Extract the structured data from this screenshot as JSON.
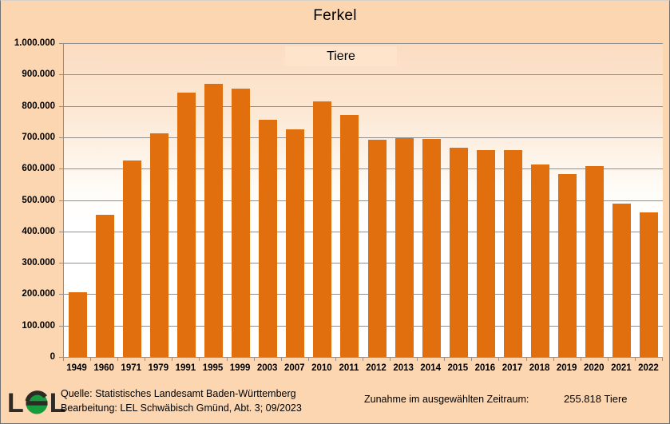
{
  "window": {
    "background_color": "#fbd6b1",
    "border_color": "#707070"
  },
  "header": {
    "title": "Ferkel"
  },
  "chart_data": {
    "type": "bar",
    "title": "Ferkel",
    "series_label": "Tiere",
    "categories": [
      "1949",
      "1960",
      "1971",
      "1979",
      "1991",
      "1995",
      "1999",
      "2003",
      "2007",
      "2010",
      "2011",
      "2012",
      "2013",
      "2014",
      "2015",
      "2016",
      "2017",
      "2018",
      "2019",
      "2020",
      "2021",
      "2022"
    ],
    "values": [
      205182,
      454000,
      626000,
      712000,
      842000,
      871000,
      856000,
      756000,
      725000,
      815000,
      770000,
      691000,
      697000,
      694000,
      667000,
      658000,
      659000,
      614000,
      582000,
      607000,
      489000,
      461000
    ],
    "unit": "Tiere",
    "ylim": [
      0,
      1000000
    ],
    "ytick_step": 100000,
    "ytick_labels": [
      "1.000.000",
      "900.000",
      "800.000",
      "700.000",
      "600.000",
      "500.000",
      "400.000",
      "300.000",
      "200.000",
      "100.000",
      "0"
    ],
    "grid": "horizontal",
    "legend_position": "top-center-inside",
    "bar_color": "#e26f0d",
    "gridline_color": "#8f8f8f"
  },
  "footer": {
    "logo": {
      "letter_left": "L",
      "letter_right": "L",
      "circle_color": "#169c3e"
    },
    "source_line1": "Quelle: Statistisches Landesamt Baden-Württemberg",
    "source_line2": "Bearbeitung: LEL Schwäbisch Gmünd, Abt. 3; 09/2023",
    "summary_label": "Zunahme im ausgewählten Zeitraum:",
    "summary_value": "255.818 Tiere"
  }
}
